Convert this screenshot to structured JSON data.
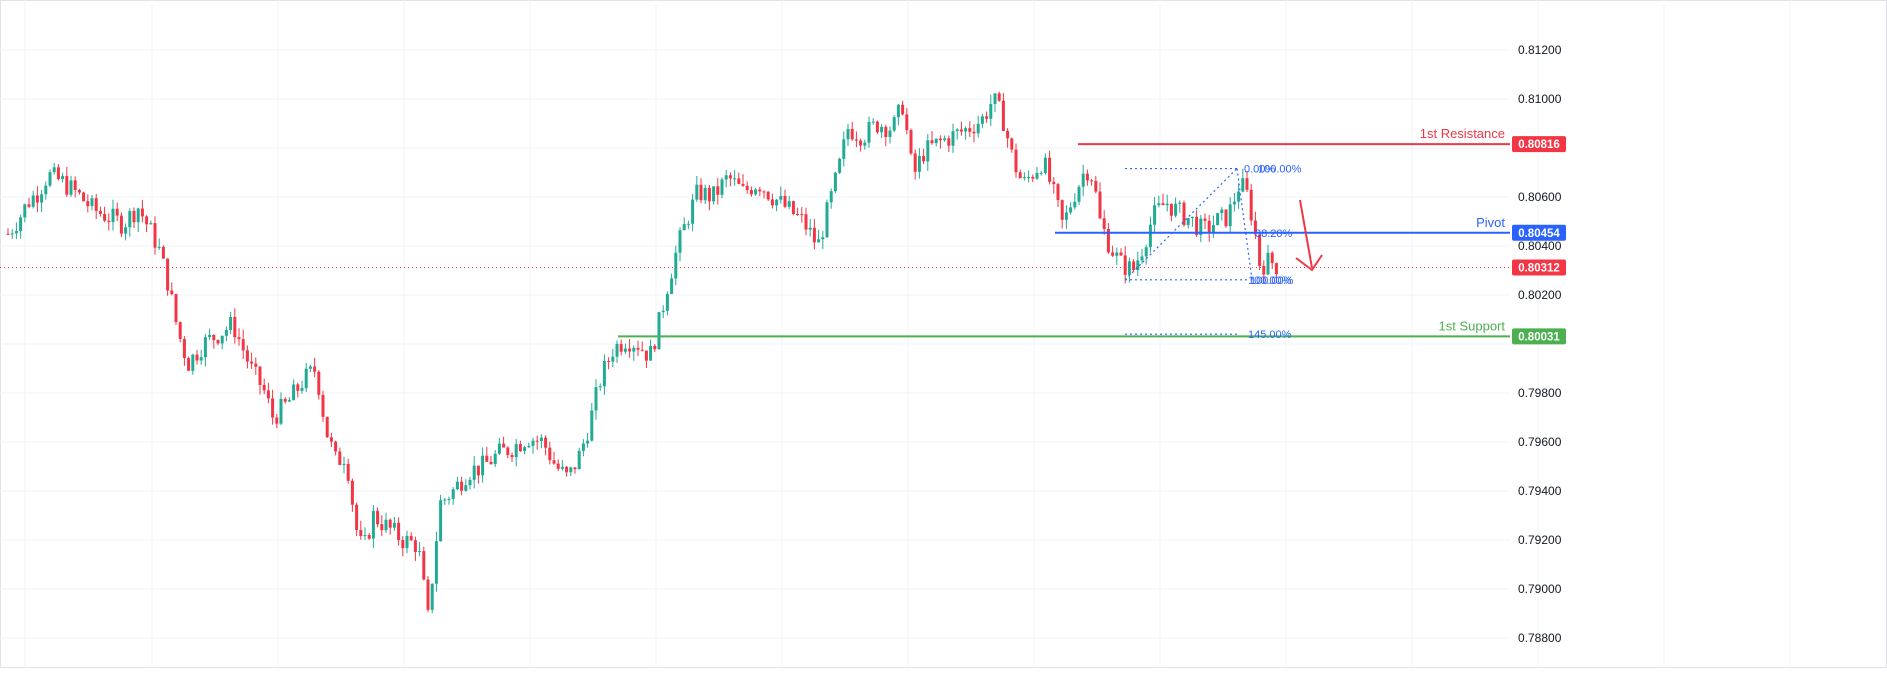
{
  "chart_data": {
    "type": "candlestick",
    "title": "",
    "xlabel": "",
    "ylabel": "",
    "ylim": [
      0.7874,
      0.8131
    ],
    "y_ticks": [
      "0.81200",
      "0.81000",
      "0.80600",
      "0.80400",
      "0.80200",
      "0.79800",
      "0.79600",
      "0.79400",
      "0.79200",
      "0.79000",
      "0.78800"
    ],
    "grid": true,
    "colors": {
      "up": "#22ab94",
      "down": "#f23645",
      "resistance": "#f23645",
      "pivot": "#2962ff",
      "support": "#4caf50",
      "fib": "#2962ff",
      "current": "#f23645"
    },
    "levels": [
      {
        "name": "1st Resistance",
        "value": 0.80816,
        "label": "0.80816",
        "color": "#f23645"
      },
      {
        "name": "Pivot",
        "value": 0.80454,
        "label": "0.80454",
        "color": "#2962ff"
      },
      {
        "name": "1st Support",
        "value": 0.80031,
        "label": "0.80031",
        "color": "#4caf50"
      }
    ],
    "current_price": {
      "value": 0.80312,
      "label": "0.80312"
    },
    "fib_levels": [
      {
        "label": "0.00%",
        "value": 0.80716
      },
      {
        "label": "100.00%",
        "value": 0.80716
      },
      {
        "label": "38.20%",
        "value": 0.80454
      },
      {
        "label": "100.00%",
        "value": 0.80262
      },
      {
        "label": "100.00%",
        "value": 0.80262
      },
      {
        "label": "145.00%",
        "value": 0.8004
      }
    ],
    "price_path": [
      [
        0,
        0.8045
      ],
      [
        12,
        0.8052
      ],
      [
        20,
        0.8058
      ],
      [
        30,
        0.8062
      ],
      [
        40,
        0.8069
      ],
      [
        55,
        0.8066
      ],
      [
        70,
        0.8061
      ],
      [
        85,
        0.8055
      ],
      [
        100,
        0.8052
      ],
      [
        115,
        0.8049
      ],
      [
        130,
        0.8056
      ],
      [
        140,
        0.8048
      ],
      [
        150,
        0.804
      ],
      [
        160,
        0.8025
      ],
      [
        170,
        0.8005
      ],
      [
        180,
        0.7992
      ],
      [
        195,
        0.8
      ],
      [
        210,
        0.8004
      ],
      [
        225,
        0.8008
      ],
      [
        235,
        0.7998
      ],
      [
        245,
        0.7988
      ],
      [
        255,
        0.7982
      ],
      [
        265,
        0.797
      ],
      [
        280,
        0.7976
      ],
      [
        295,
        0.7985
      ],
      [
        308,
        0.799
      ],
      [
        318,
        0.7965
      ],
      [
        328,
        0.7952
      ],
      [
        338,
        0.7955
      ],
      [
        348,
        0.7925
      ],
      [
        355,
        0.7915
      ],
      [
        365,
        0.793
      ],
      [
        380,
        0.7925
      ],
      [
        395,
        0.792
      ],
      [
        410,
        0.7918
      ],
      [
        420,
        0.7888
      ],
      [
        432,
        0.7935
      ],
      [
        445,
        0.794
      ],
      [
        460,
        0.7948
      ],
      [
        475,
        0.795
      ],
      [
        490,
        0.7955
      ],
      [
        505,
        0.7958
      ],
      [
        520,
        0.7962
      ],
      [
        535,
        0.796
      ],
      [
        548,
        0.795
      ],
      [
        560,
        0.7945
      ],
      [
        572,
        0.7955
      ],
      [
        582,
        0.7968
      ],
      [
        592,
        0.7985
      ],
      [
        605,
        0.7998
      ],
      [
        618,
        0.8002
      ],
      [
        630,
        0.8
      ],
      [
        642,
        0.7995
      ],
      [
        652,
        0.801
      ],
      [
        660,
        0.8025
      ],
      [
        670,
        0.804
      ],
      [
        680,
        0.8052
      ],
      [
        690,
        0.8062
      ],
      [
        705,
        0.806
      ],
      [
        720,
        0.8068
      ],
      [
        735,
        0.8062
      ],
      [
        750,
        0.8066
      ],
      [
        765,
        0.806
      ],
      [
        780,
        0.8055
      ],
      [
        795,
        0.805
      ],
      [
        810,
        0.804
      ],
      [
        820,
        0.8055
      ],
      [
        830,
        0.807
      ],
      [
        840,
        0.8088
      ],
      [
        855,
        0.8085
      ],
      [
        870,
        0.809
      ],
      [
        885,
        0.8088
      ],
      [
        895,
        0.8098
      ],
      [
        905,
        0.8068
      ],
      [
        915,
        0.8078
      ],
      [
        930,
        0.8082
      ],
      [
        945,
        0.8085
      ],
      [
        960,
        0.8088
      ],
      [
        975,
        0.8092
      ],
      [
        985,
        0.81
      ],
      [
        995,
        0.8092
      ],
      [
        1005,
        0.8075
      ],
      [
        1015,
        0.8065
      ],
      [
        1025,
        0.807
      ],
      [
        1035,
        0.8075
      ],
      [
        1045,
        0.8062
      ],
      [
        1055,
        0.8048
      ],
      [
        1065,
        0.806
      ],
      [
        1078,
        0.8072
      ],
      [
        1085,
        0.8068
      ],
      [
        1092,
        0.805
      ],
      [
        1102,
        0.804
      ],
      [
        1112,
        0.8033
      ],
      [
        1125,
        0.803
      ],
      [
        1135,
        0.804
      ],
      [
        1145,
        0.8052
      ],
      [
        1158,
        0.8058
      ],
      [
        1170,
        0.8054
      ],
      [
        1185,
        0.805
      ],
      [
        1195,
        0.8046
      ],
      [
        1208,
        0.805
      ],
      [
        1220,
        0.8052
      ],
      [
        1232,
        0.8066
      ],
      [
        1240,
        0.806
      ],
      [
        1246,
        0.8048
      ],
      [
        1252,
        0.8032
      ],
      [
        1262,
        0.8034
      ],
      [
        1272,
        0.8031
      ]
    ]
  },
  "axis": {
    "font_color": "#131722",
    "grid_color": "#f0f3fa"
  }
}
